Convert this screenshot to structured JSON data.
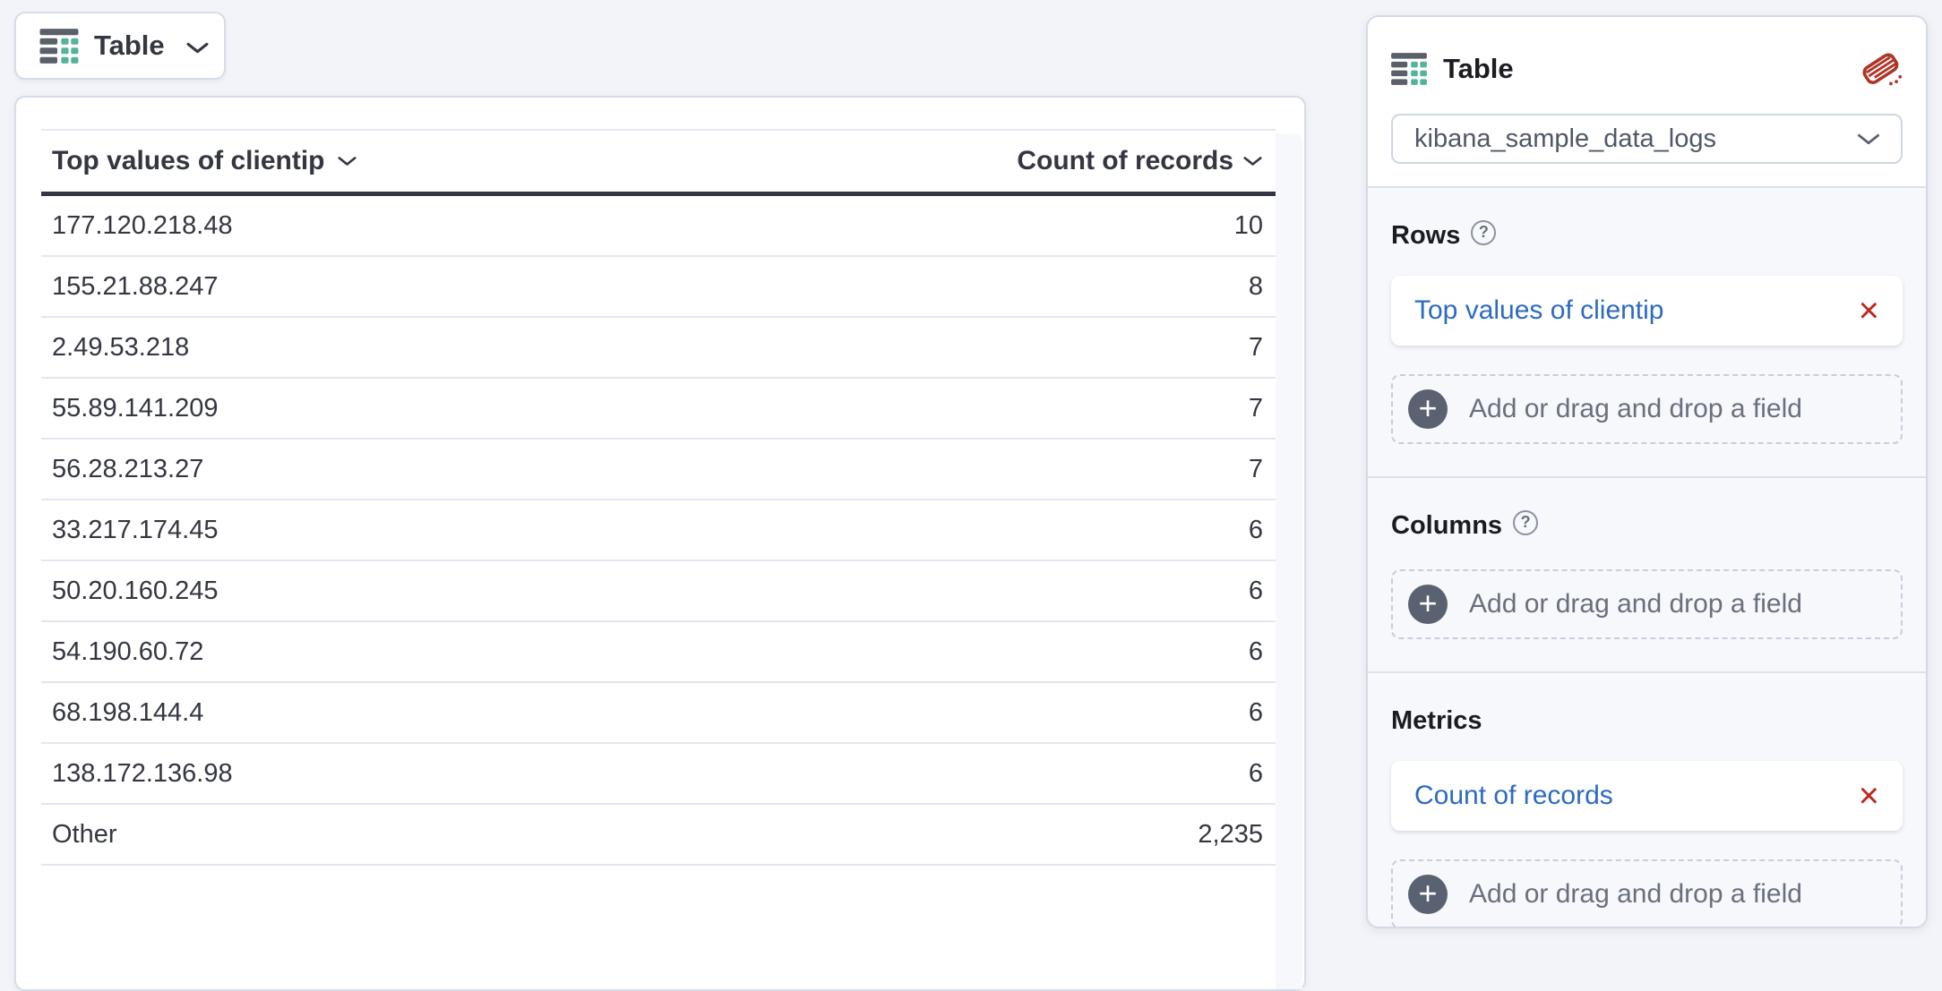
{
  "chart_switcher": {
    "label": "Table"
  },
  "table": {
    "columns": [
      {
        "label": "Top values of clientip"
      },
      {
        "label": "Count of records"
      }
    ],
    "rows": [
      [
        "177.120.218.48",
        "10"
      ],
      [
        "155.21.88.247",
        "8"
      ],
      [
        "2.49.53.218",
        "7"
      ],
      [
        "55.89.141.209",
        "7"
      ],
      [
        "56.28.213.27",
        "7"
      ],
      [
        "33.217.174.45",
        "6"
      ],
      [
        "50.20.160.245",
        "6"
      ],
      [
        "54.190.60.72",
        "6"
      ],
      [
        "68.198.144.4",
        "6"
      ],
      [
        "138.172.136.98",
        "6"
      ],
      [
        "Other",
        "2,235"
      ]
    ]
  },
  "config_panel": {
    "title": "Table",
    "data_view": "kibana_sample_data_logs",
    "sections": [
      {
        "label": "Rows",
        "fields": [
          "Top values of clientip"
        ],
        "add_placeholder": "Add or drag and drop a field"
      },
      {
        "label": "Columns",
        "fields": [],
        "add_placeholder": "Add or drag and drop a field"
      },
      {
        "label": "Metrics",
        "fields": [
          "Count of records"
        ],
        "add_placeholder": "Add or drag and drop a field"
      }
    ]
  },
  "icons": {
    "help": "?",
    "plus": "+",
    "close": "×"
  },
  "colors": {
    "accent_green": "#54b399",
    "icon_gray": "#5a6069",
    "link_blue": "#2d6ac3",
    "danger_red": "#bd271e",
    "text": "#343741"
  }
}
